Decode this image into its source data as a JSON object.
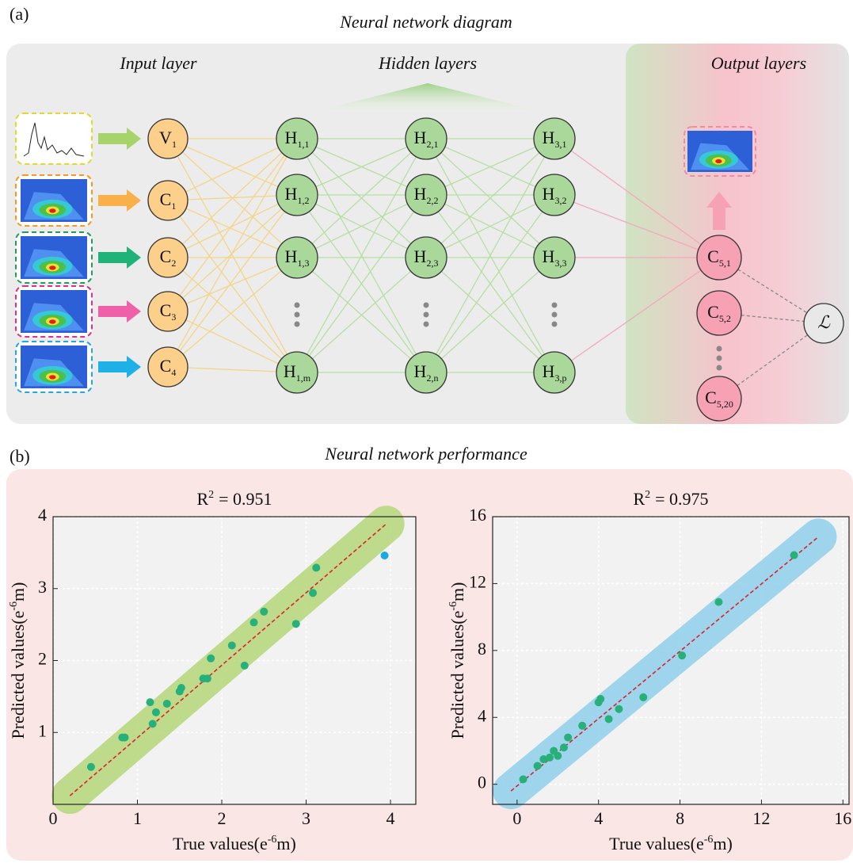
{
  "diagram": {
    "label": "(a)",
    "title": "Neural network diagram",
    "section_titles": [
      "Input layer",
      "Hidden layers",
      "Output layers"
    ],
    "input_nodes": [
      {
        "base": "V",
        "sub": "1"
      },
      {
        "base": "C",
        "sub": "1"
      },
      {
        "base": "C",
        "sub": "2"
      },
      {
        "base": "C",
        "sub": "3"
      },
      {
        "base": "C",
        "sub": "4"
      }
    ],
    "hidden_layers": [
      [
        {
          "base": "H",
          "sub": "1,1"
        },
        {
          "base": "H",
          "sub": "1,2"
        },
        {
          "base": "H",
          "sub": "1,3"
        },
        {
          "base": "H",
          "sub": "1,m"
        }
      ],
      [
        {
          "base": "H",
          "sub": "2,1"
        },
        {
          "base": "H",
          "sub": "2,2"
        },
        {
          "base": "H",
          "sub": "2,3"
        },
        {
          "base": "H",
          "sub": "2,n"
        }
      ],
      [
        {
          "base": "H",
          "sub": "3,1"
        },
        {
          "base": "H",
          "sub": "3,2"
        },
        {
          "base": "H",
          "sub": "3,3"
        },
        {
          "base": "H",
          "sub": "3,p"
        }
      ]
    ],
    "output_nodes": [
      {
        "base": "C",
        "sub": "5,1"
      },
      {
        "base": "C",
        "sub": "5,2"
      },
      {
        "base": "C",
        "sub": "5,20"
      }
    ],
    "loss": "ℒ"
  },
  "performance": {
    "label": "(b)",
    "title": "Neural network performance",
    "chart_data": [
      {
        "type": "scatter",
        "title": {
          "base": "R",
          "sup": "2",
          "rest": "= 0.951"
        },
        "xlabel": {
          "before": "True values(e",
          "sup": "-6",
          "after": "m)"
        },
        "ylabel": {
          "before": "Predicted values(e",
          "sup": "-6",
          "after": "m)"
        },
        "xlim": [
          0,
          4.3
        ],
        "ylim": [
          0,
          4
        ],
        "xticks": [
          0,
          1,
          2,
          3,
          4
        ],
        "yticks": [
          1,
          2,
          3,
          4
        ],
        "grid": true,
        "band_color": "#b5d77a",
        "reference_line": {
          "x": [
            0.2,
            3.95
          ],
          "y": [
            0.12,
            3.9
          ],
          "color": "#e0202a"
        },
        "series": [
          {
            "color": "#27b07a",
            "x": [
              0.45,
              0.82,
              0.85,
              1.15,
              1.18,
              1.22,
              1.35,
              1.5,
              1.52,
              1.78,
              1.83,
              1.87,
              2.12,
              2.27,
              2.38,
              2.5,
              2.88,
              3.08,
              3.12
            ],
            "y": [
              0.52,
              0.93,
              0.93,
              1.42,
              1.12,
              1.28,
              1.4,
              1.57,
              1.62,
              1.75,
              1.75,
              2.03,
              2.21,
              1.93,
              2.53,
              2.68,
              2.51,
              2.94,
              3.29
            ]
          },
          {
            "color": "#1fa8e0",
            "x": [
              3.93
            ],
            "y": [
              3.46
            ]
          }
        ]
      },
      {
        "type": "scatter",
        "title": {
          "base": "R",
          "sup": "2",
          "rest": "= 0.975"
        },
        "xlabel": {
          "before": "True values(e",
          "sup": "-6",
          "after": "m)"
        },
        "ylabel": {
          "before": "Predicted values(e",
          "sup": "-6",
          "after": "m)"
        },
        "xlim": [
          -1.2,
          16.3
        ],
        "ylim": [
          -1.2,
          16
        ],
        "xticks": [
          0,
          4,
          8,
          12,
          16
        ],
        "yticks": [
          0,
          4,
          8,
          12,
          16
        ],
        "grid": true,
        "band_color": "#8fd0ec",
        "reference_line": {
          "x": [
            -0.3,
            14.8
          ],
          "y": [
            -0.4,
            14.8
          ],
          "color": "#e0202a"
        },
        "series": [
          {
            "color": "#27b07a",
            "x": [
              0.3,
              1.0,
              1.3,
              1.6,
              1.8,
              2.0,
              2.3,
              2.5,
              3.2,
              4.0,
              4.1,
              4.5,
              5.0,
              6.2,
              8.1,
              9.9,
              13.6
            ],
            "y": [
              0.3,
              1.1,
              1.5,
              1.6,
              2.0,
              1.7,
              2.2,
              2.8,
              3.5,
              4.9,
              5.1,
              3.9,
              4.5,
              5.2,
              7.7,
              10.9,
              13.7
            ]
          }
        ]
      }
    ]
  }
}
